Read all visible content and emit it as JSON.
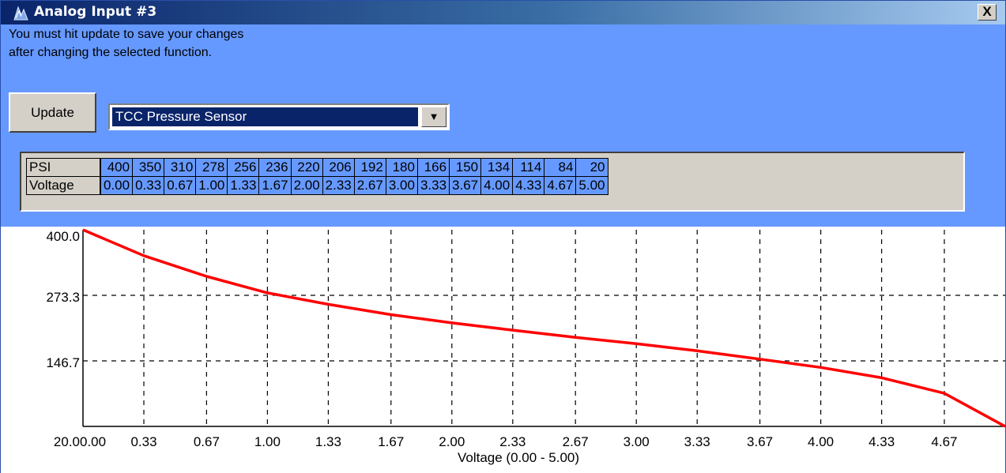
{
  "window": {
    "title": "Analog Input #3",
    "close_label": "X"
  },
  "message": {
    "line1": "You must hit update to save your changes",
    "line2": "after changing the selected function."
  },
  "controls": {
    "update_label": "Update",
    "function_selected": "TCC Pressure Sensor"
  },
  "table": {
    "row1_label": "PSI",
    "row2_label": "Voltage",
    "psi": [
      "400",
      "350",
      "310",
      "278",
      "256",
      "236",
      "220",
      "206",
      "192",
      "180",
      "166",
      "150",
      "134",
      "114",
      "84",
      "20"
    ],
    "voltage": [
      "0.00",
      "0.33",
      "0.67",
      "1.00",
      "1.33",
      "1.67",
      "2.00",
      "2.33",
      "2.67",
      "3.00",
      "3.33",
      "3.67",
      "4.00",
      "4.33",
      "4.67",
      "5.00"
    ]
  },
  "colors": {
    "window_bg": "#6699ff",
    "curve": "#ff0000",
    "title_bar": "#0a246a"
  },
  "chart_data": {
    "type": "line",
    "title": "",
    "xlabel": "Voltage (0.00 - 5.00)",
    "ylabel": "",
    "xlim": [
      0,
      5
    ],
    "ylim": [
      20,
      400
    ],
    "x_tick_labels": [
      "20.00.00",
      "0.33",
      "0.67",
      "1.00",
      "1.33",
      "1.67",
      "2.00",
      "2.33",
      "2.67",
      "3.00",
      "3.33",
      "3.67",
      "4.00",
      "4.33",
      "4.67"
    ],
    "y_tick_labels": [
      "400.0",
      "273.3",
      "146.7"
    ],
    "grid": true,
    "series": [
      {
        "x": [
          0.0,
          0.33,
          0.67,
          1.0,
          1.33,
          1.67,
          2.0,
          2.33,
          2.67,
          3.0,
          3.33,
          3.67,
          4.0,
          4.33,
          4.67,
          5.0
        ],
        "y": [
          400,
          350,
          310,
          278,
          256,
          236,
          220,
          206,
          192,
          180,
          166,
          150,
          134,
          114,
          84,
          20
        ]
      }
    ]
  }
}
